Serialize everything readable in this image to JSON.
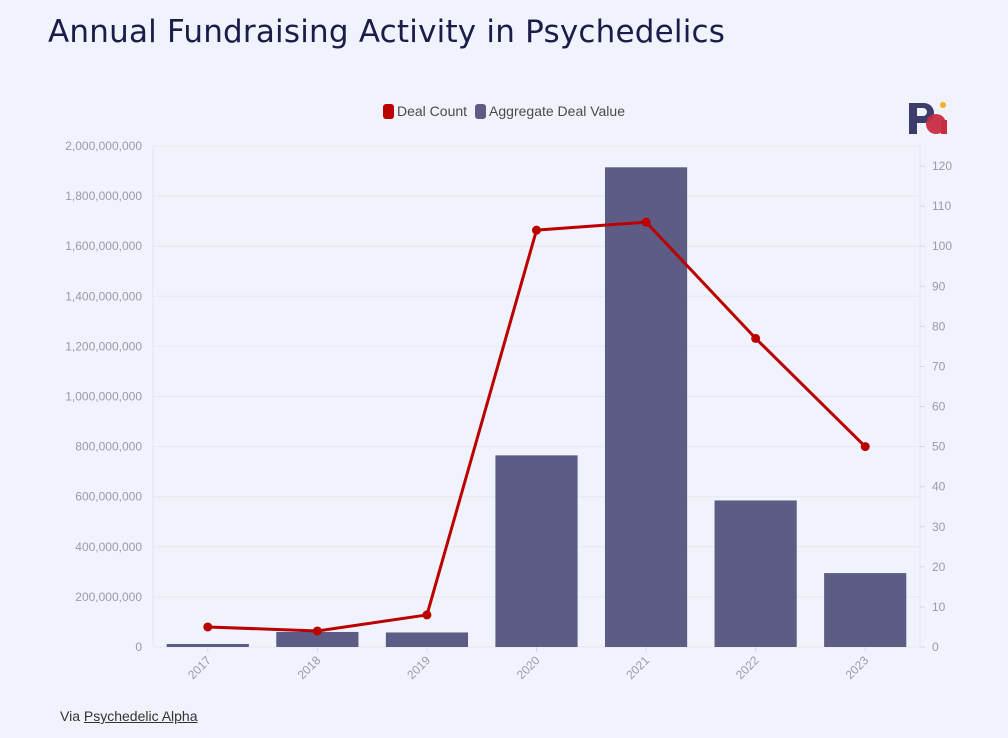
{
  "title": "Annual Fundraising Activity in Psychedelics",
  "source": {
    "prefix": "Via",
    "link_text": "Psychedelic Alpha"
  },
  "colors": {
    "bar": "#5d5c85",
    "line": "#bb0000",
    "logo_dark": "#3d3c6b",
    "logo_red": "#c72c41",
    "logo_dot": "#f2b01e"
  },
  "chart_data": {
    "type": "bar",
    "categories": [
      "2017",
      "2018",
      "2019",
      "2020",
      "2021",
      "2022",
      "2023"
    ],
    "series": [
      {
        "name": "Aggregate Deal Value",
        "type": "bar",
        "axis": "left",
        "values": [
          12000000,
          60000000,
          58000000,
          765000000,
          1915000000,
          585000000,
          295000000
        ]
      },
      {
        "name": "Deal Count",
        "type": "line",
        "axis": "right",
        "values": [
          5,
          4,
          8,
          104,
          106,
          77,
          50
        ]
      }
    ],
    "legend": [
      "Deal Count",
      "Aggregate Deal Value"
    ],
    "legend_position": "top-center",
    "y_left": {
      "min": 0,
      "max": 2000000000,
      "ticks": [
        "0",
        "200,000,000",
        "400,000,000",
        "600,000,000",
        "800,000,000",
        "1,000,000,000",
        "1,200,000,000",
        "1,400,000,000",
        "1,600,000,000",
        "1,800,000,000",
        "2,000,000,000"
      ]
    },
    "y_right": {
      "min": 0,
      "max": 125,
      "ticks": [
        "0",
        "10",
        "20",
        "30",
        "40",
        "50",
        "60",
        "70",
        "80",
        "90",
        "100",
        "110",
        "120"
      ]
    },
    "grid": true
  }
}
